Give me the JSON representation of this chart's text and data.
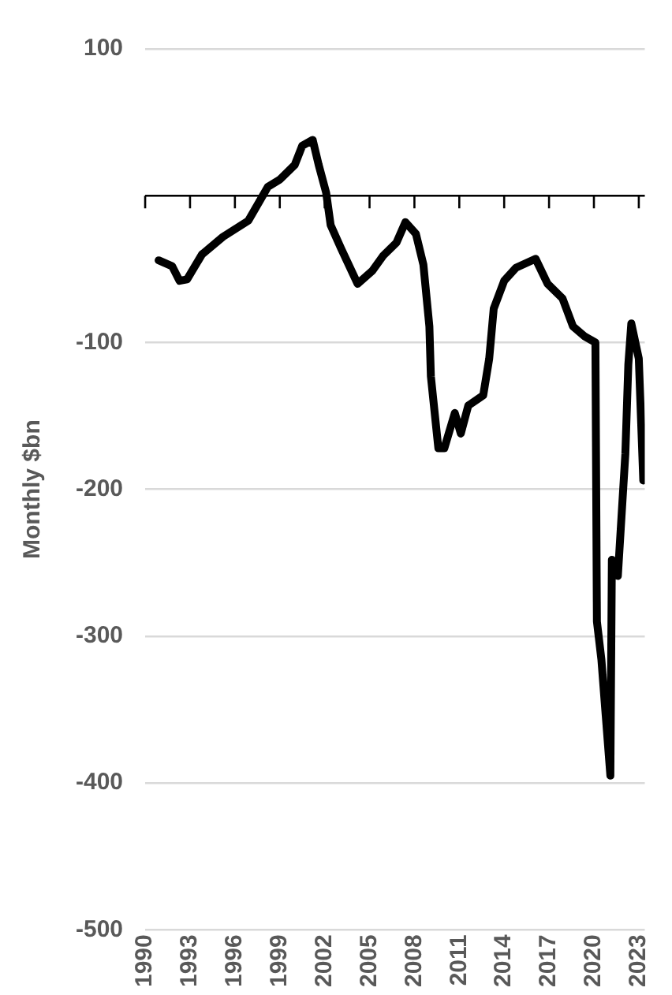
{
  "chart_data": {
    "type": "line",
    "ylabel": "Monthly $bn",
    "x": [
      1990.9,
      1991.8,
      1992.3,
      1992.8,
      1993.8,
      1995.2,
      1996.9,
      1998.2,
      1999.0,
      2000.0,
      2000.5,
      2001.2,
      2001.6,
      2002.1,
      2002.4,
      2003.1,
      2004.2,
      2005.2,
      2005.9,
      2006.8,
      2007.4,
      2008.1,
      2008.6,
      2009.0,
      2009.1,
      2009.6,
      2010.0,
      2010.7,
      2011.1,
      2011.6,
      2012.6,
      2013.0,
      2013.3,
      2014.0,
      2014.8,
      2016.1,
      2016.9,
      2017.9,
      2018.6,
      2019.4,
      2020.1,
      2020.2,
      2020.5,
      2021.1,
      2021.2,
      2021.6,
      2022.1,
      2022.3,
      2022.5,
      2023.0,
      2023.3
    ],
    "series": [
      {
        "color": "#000000",
        "values": [
          -44,
          -48,
          -58,
          -57,
          -40,
          -28,
          -17,
          6,
          11,
          21,
          34,
          38,
          21,
          2,
          -20,
          -36,
          -60,
          -51,
          -41,
          -32,
          -18,
          -26,
          -47,
          -89,
          -123,
          -172,
          -172,
          -148,
          -162,
          -143,
          -136,
          -111,
          -77,
          -58,
          -49,
          -43,
          -60,
          -70,
          -89,
          -96,
          -100,
          -290,
          -316,
          -395,
          -248,
          -259,
          -176,
          -115,
          -87,
          -111,
          -194
        ]
      }
    ],
    "xlim": [
      1990,
      2023.4
    ],
    "xticks": [
      1990,
      1993,
      1996,
      1999,
      2002,
      2005,
      2008,
      2011,
      2014,
      2017,
      2020,
      2023
    ],
    "ylim": [
      -500,
      100
    ],
    "yticks": [
      100,
      {
        "value": 0,
        "label": null
      },
      -100,
      -200,
      -300,
      -400,
      -500
    ],
    "grid": "y",
    "legend": false,
    "marker": "none",
    "line_style": "solid"
  }
}
